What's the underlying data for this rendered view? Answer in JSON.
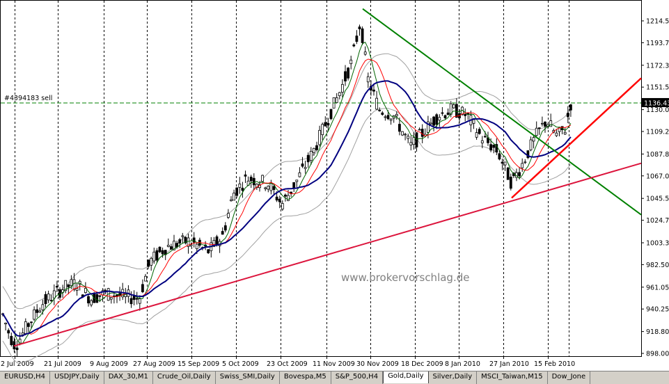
{
  "window": {
    "watermark": "www.brokervorschlag.de",
    "order_label": "#4394183 sell",
    "order_price": "1136.43",
    "colors": {
      "bull_candle": "#ffffff",
      "bear_candle": "#000000",
      "ma_fast": "#006400",
      "ma_mid": "#ff0000",
      "ma_slow": "#000080",
      "bands": "#a0a0a0",
      "trend_green": "#008000",
      "trend_red": "#ff0000",
      "trend_crimson": "#dc143c"
    }
  },
  "chart_data": {
    "type": "candlestick",
    "symbol": "Gold,Daily",
    "ylim": [
      898.0,
      1230.0
    ],
    "y_ticks": [
      "1214.55",
      "1193.75",
      "1172.30",
      "1151.50",
      "1130.05",
      "1109.25",
      "1087.80",
      "1067.00",
      "1045.55",
      "1024.75",
      "1003.30",
      "982.50",
      "961.05",
      "940.25",
      "918.80",
      "898.00"
    ],
    "x_labels": [
      "2 Jul 2009",
      "21 Jul 2009",
      "9 Aug 2009",
      "27 Aug 2009",
      "15 Sep 2009",
      "5 Oct 2009",
      "23 Oct 2009",
      "11 Nov 2009",
      "30 Nov 2009",
      "18 Dec 2009",
      "8 Jan 2010",
      "27 Jan 2010",
      "15 Feb 2010"
    ],
    "indicators": [
      "Moving Average (fast)",
      "Moving Average (mid)",
      "Moving Average (slow)",
      "Bollinger Bands"
    ],
    "trendlines": [
      {
        "color": "green",
        "from": [
          "30 Nov 2009",
          1220
        ],
        "to": [
          "end",
          1030
        ]
      },
      {
        "color": "red",
        "from": [
          "27 Jan 2010",
          1045
        ],
        "to": [
          "end",
          1158
        ]
      },
      {
        "color": "crimson",
        "from": [
          "2 Jul 2009",
          905
        ],
        "to": [
          "end",
          1078
        ]
      }
    ],
    "horizontal_line": {
      "label": "#4394183 sell",
      "value": 1136.43
    }
  },
  "tabs": [
    {
      "label": "EURUSD,H4"
    },
    {
      "label": "USDJPY,Daily"
    },
    {
      "label": "DAX_30,M1"
    },
    {
      "label": "Crude_Oil,Daily"
    },
    {
      "label": "Swiss_SMI,Daily"
    },
    {
      "label": "Bovespa,M5"
    },
    {
      "label": "S&P_500,H4"
    },
    {
      "label": "Gold,Daily",
      "active": true
    },
    {
      "label": "Silver,Daily"
    },
    {
      "label": "MSCI_Taiwan,M15"
    },
    {
      "label": "Dow_Jone"
    }
  ]
}
